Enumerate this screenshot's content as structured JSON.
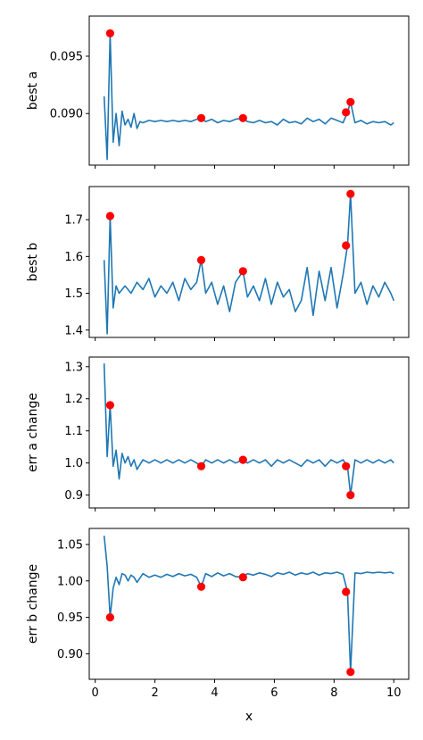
{
  "chart_data": [
    {
      "type": "line",
      "ylabel": "best a",
      "xlim": [
        -0.2,
        10.5
      ],
      "ylim": [
        0.0855,
        0.0985
      ],
      "yticks": [
        0.09,
        0.095
      ],
      "ytick_labels": [
        "0.090",
        "0.095"
      ],
      "x": [
        0.3,
        0.4,
        0.5,
        0.6,
        0.7,
        0.8,
        0.9,
        1.0,
        1.1,
        1.2,
        1.3,
        1.4,
        1.5,
        1.6,
        1.8,
        2.0,
        2.2,
        2.4,
        2.6,
        2.8,
        3.0,
        3.2,
        3.4,
        3.55,
        3.7,
        3.9,
        4.1,
        4.3,
        4.5,
        4.7,
        4.95,
        5.1,
        5.3,
        5.5,
        5.7,
        5.9,
        6.1,
        6.3,
        6.5,
        6.7,
        6.9,
        7.1,
        7.3,
        7.5,
        7.7,
        7.9,
        8.1,
        8.3,
        8.45,
        8.55,
        8.7,
        8.9,
        9.1,
        9.3,
        9.5,
        9.7,
        9.9,
        10.0
      ],
      "values": [
        0.0915,
        0.086,
        0.097,
        0.0875,
        0.09,
        0.0872,
        0.0902,
        0.089,
        0.0895,
        0.0888,
        0.09,
        0.0887,
        0.0893,
        0.0892,
        0.0894,
        0.0893,
        0.0894,
        0.0893,
        0.0894,
        0.0893,
        0.0894,
        0.0893,
        0.0895,
        0.0896,
        0.0893,
        0.0895,
        0.0892,
        0.0894,
        0.0893,
        0.0895,
        0.0896,
        0.0893,
        0.0892,
        0.0894,
        0.0892,
        0.0893,
        0.089,
        0.0895,
        0.0892,
        0.0893,
        0.0891,
        0.0896,
        0.0893,
        0.0895,
        0.0891,
        0.0896,
        0.0894,
        0.0892,
        0.0901,
        0.091,
        0.0892,
        0.0894,
        0.0891,
        0.0893,
        0.0892,
        0.0893,
        0.089,
        0.0892
      ],
      "highlights": [
        {
          "x": 0.5,
          "y": 0.097
        },
        {
          "x": 3.55,
          "y": 0.0896
        },
        {
          "x": 4.95,
          "y": 0.0896
        },
        {
          "x": 8.4,
          "y": 0.0901
        },
        {
          "x": 8.55,
          "y": 0.091
        }
      ]
    },
    {
      "type": "line",
      "ylabel": "best b",
      "xlim": [
        -0.2,
        10.5
      ],
      "ylim": [
        1.38,
        1.79
      ],
      "yticks": [
        1.4,
        1.5,
        1.6,
        1.7
      ],
      "ytick_labels": [
        "1.4",
        "1.5",
        "1.6",
        "1.7"
      ],
      "x": [
        0.3,
        0.4,
        0.5,
        0.6,
        0.7,
        0.8,
        0.9,
        1.0,
        1.2,
        1.4,
        1.6,
        1.8,
        2.0,
        2.2,
        2.4,
        2.6,
        2.8,
        3.0,
        3.2,
        3.4,
        3.55,
        3.7,
        3.9,
        4.1,
        4.3,
        4.5,
        4.7,
        4.95,
        5.1,
        5.3,
        5.5,
        5.7,
        5.9,
        6.1,
        6.3,
        6.5,
        6.7,
        6.9,
        7.1,
        7.3,
        7.5,
        7.7,
        7.9,
        8.1,
        8.3,
        8.45,
        8.55,
        8.7,
        8.9,
        9.1,
        9.3,
        9.5,
        9.7,
        9.9,
        10.0
      ],
      "values": [
        1.59,
        1.39,
        1.71,
        1.46,
        1.52,
        1.5,
        1.51,
        1.52,
        1.5,
        1.53,
        1.51,
        1.54,
        1.49,
        1.52,
        1.5,
        1.53,
        1.48,
        1.54,
        1.51,
        1.53,
        1.59,
        1.5,
        1.53,
        1.47,
        1.52,
        1.45,
        1.53,
        1.56,
        1.49,
        1.52,
        1.48,
        1.54,
        1.47,
        1.53,
        1.49,
        1.51,
        1.45,
        1.48,
        1.57,
        1.44,
        1.56,
        1.48,
        1.57,
        1.46,
        1.55,
        1.63,
        1.77,
        1.5,
        1.53,
        1.47,
        1.52,
        1.49,
        1.53,
        1.5,
        1.48
      ],
      "highlights": [
        {
          "x": 0.5,
          "y": 1.71
        },
        {
          "x": 3.55,
          "y": 1.59
        },
        {
          "x": 4.95,
          "y": 1.56
        },
        {
          "x": 8.4,
          "y": 1.63
        },
        {
          "x": 8.55,
          "y": 1.77
        }
      ]
    },
    {
      "type": "line",
      "ylabel": "err a change",
      "xlim": [
        -0.2,
        10.5
      ],
      "ylim": [
        0.86,
        1.33
      ],
      "yticks": [
        0.9,
        1.0,
        1.1,
        1.2,
        1.3
      ],
      "ytick_labels": [
        "0.9",
        "1.0",
        "1.1",
        "1.2",
        "1.3"
      ],
      "x": [
        0.3,
        0.4,
        0.5,
        0.6,
        0.7,
        0.8,
        0.9,
        1.0,
        1.1,
        1.2,
        1.3,
        1.4,
        1.6,
        1.8,
        2.0,
        2.2,
        2.4,
        2.6,
        2.8,
        3.0,
        3.2,
        3.4,
        3.55,
        3.7,
        3.9,
        4.1,
        4.3,
        4.5,
        4.7,
        4.95,
        5.1,
        5.3,
        5.5,
        5.7,
        5.9,
        6.1,
        6.3,
        6.5,
        6.7,
        6.9,
        7.1,
        7.3,
        7.5,
        7.7,
        7.9,
        8.1,
        8.3,
        8.45,
        8.55,
        8.7,
        8.9,
        9.1,
        9.3,
        9.5,
        9.7,
        9.9,
        10.0
      ],
      "values": [
        1.31,
        1.02,
        1.18,
        0.99,
        1.04,
        0.95,
        1.03,
        1.0,
        1.02,
        0.99,
        1.01,
        0.98,
        1.01,
        1.0,
        1.01,
        1.0,
        1.01,
        1.0,
        1.01,
        1.0,
        1.01,
        1.0,
        0.99,
        1.01,
        1.0,
        1.01,
        1.0,
        1.01,
        1.0,
        1.01,
        1.0,
        1.01,
        1.0,
        1.01,
        0.99,
        1.01,
        1.0,
        1.01,
        1.0,
        0.99,
        1.01,
        1.0,
        1.01,
        0.99,
        1.01,
        1.0,
        1.01,
        0.99,
        0.9,
        1.01,
        1.0,
        1.01,
        1.0,
        1.01,
        1.0,
        1.01,
        1.0
      ],
      "highlights": [
        {
          "x": 0.5,
          "y": 1.18
        },
        {
          "x": 3.55,
          "y": 0.99
        },
        {
          "x": 4.95,
          "y": 1.01
        },
        {
          "x": 8.4,
          "y": 0.99
        },
        {
          "x": 8.55,
          "y": 0.9
        }
      ]
    },
    {
      "type": "line",
      "ylabel": "err b change",
      "xlabel": "x",
      "xlim": [
        -0.2,
        10.5
      ],
      "ylim": [
        0.865,
        1.072
      ],
      "yticks": [
        0.9,
        0.95,
        1.0,
        1.05
      ],
      "ytick_labels": [
        "0.90",
        "0.95",
        "1.00",
        "1.05"
      ],
      "xticks": [
        0,
        2,
        4,
        6,
        8,
        10
      ],
      "xtick_labels": [
        "0",
        "2",
        "4",
        "6",
        "8",
        "10"
      ],
      "x": [
        0.3,
        0.4,
        0.5,
        0.6,
        0.7,
        0.8,
        0.9,
        1.0,
        1.1,
        1.2,
        1.3,
        1.4,
        1.6,
        1.8,
        2.0,
        2.2,
        2.4,
        2.6,
        2.8,
        3.0,
        3.2,
        3.4,
        3.55,
        3.7,
        3.9,
        4.1,
        4.3,
        4.5,
        4.7,
        4.95,
        5.1,
        5.3,
        5.5,
        5.7,
        5.9,
        6.1,
        6.3,
        6.5,
        6.7,
        6.9,
        7.1,
        7.3,
        7.5,
        7.7,
        7.9,
        8.1,
        8.3,
        8.45,
        8.55,
        8.7,
        8.9,
        9.1,
        9.3,
        9.5,
        9.7,
        9.9,
        10.0
      ],
      "values": [
        1.062,
        1.02,
        0.95,
        0.99,
        1.005,
        0.995,
        1.01,
        1.008,
        1.0,
        1.008,
        1.005,
        0.998,
        1.01,
        1.005,
        1.008,
        1.005,
        1.009,
        1.006,
        1.01,
        1.007,
        1.009,
        1.005,
        0.992,
        1.01,
        1.006,
        1.011,
        1.007,
        1.01,
        1.006,
        1.005,
        1.01,
        1.008,
        1.011,
        1.009,
        1.006,
        1.011,
        1.009,
        1.012,
        1.008,
        1.011,
        1.009,
        1.012,
        1.008,
        1.011,
        1.01,
        1.012,
        1.009,
        0.985,
        0.875,
        1.011,
        1.01,
        1.012,
        1.011,
        1.012,
        1.011,
        1.012,
        1.01
      ],
      "highlights": [
        {
          "x": 0.5,
          "y": 0.95
        },
        {
          "x": 3.55,
          "y": 0.992
        },
        {
          "x": 4.95,
          "y": 1.005
        },
        {
          "x": 8.4,
          "y": 0.985
        },
        {
          "x": 8.55,
          "y": 0.875
        }
      ]
    }
  ],
  "colors": {
    "line": "#1f77b4",
    "marker": "#ff0000"
  }
}
